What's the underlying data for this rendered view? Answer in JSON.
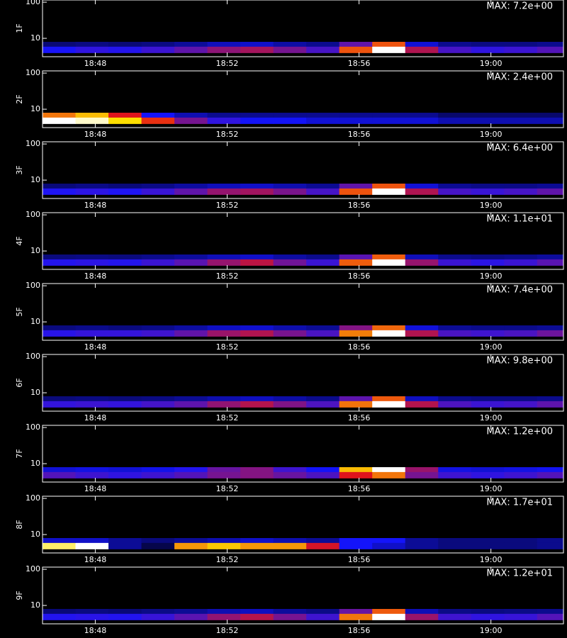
{
  "chart_data": [
    {
      "type": "heatmap",
      "ylabel": "1F",
      "max": {
        "value": 7.2,
        "label": "MAX: 7.2e+00"
      },
      "x": [
        46.9,
        47.9,
        48.9,
        49.9,
        50.9,
        51.9,
        52.9,
        53.9,
        54.9,
        55.9,
        56.9,
        57.9,
        58.9,
        59.9,
        60.9,
        61.9
      ],
      "y_bins": [
        4,
        6,
        8
      ],
      "z": [
        [
          2.2,
          2.4,
          2.3,
          2.5,
          2.8,
          3.2,
          3.4,
          3.0,
          2.6,
          4.5,
          7.2,
          3.5,
          2.6,
          2.4,
          2.5,
          2.7
        ],
        [
          1.0,
          1.1,
          1.0,
          1.1,
          1.3,
          1.6,
          1.7,
          1.4,
          1.2,
          2.8,
          4.5,
          1.8,
          1.2,
          1.1,
          1.1,
          1.2
        ]
      ],
      "xlim": [
        46.4,
        62.2
      ],
      "ylim": [
        3.1,
        115
      ],
      "log_y": true,
      "xticks": [
        {
          "value": 48,
          "label": "18:48"
        },
        {
          "value": 52,
          "label": "18:52"
        },
        {
          "value": 56,
          "label": "18:56"
        },
        {
          "value": 60,
          "label": "19:00"
        }
      ],
      "yticks": [
        10,
        100
      ]
    },
    {
      "type": "heatmap",
      "ylabel": "2F",
      "max": {
        "value": 2.4,
        "label": "MAX: 2.4e+00"
      },
      "x": [
        46.9,
        47.9,
        48.9,
        49.9,
        50.9,
        51.9,
        52.9,
        53.9,
        54.9,
        55.9,
        56.9,
        57.9,
        58.9,
        59.9,
        60.9,
        61.9
      ],
      "y_bins": [
        4,
        6,
        8
      ],
      "z": [
        [
          2.4,
          2.3,
          1.9,
          1.4,
          1.0,
          0.8,
          0.7,
          0.7,
          0.6,
          0.6,
          0.6,
          0.6,
          0.5,
          0.5,
          0.5,
          0.5
        ],
        [
          1.6,
          1.8,
          1.3,
          0.7,
          0.5,
          0.4,
          0.4,
          0.4,
          0.4,
          0.4,
          0.4,
          0.4,
          0.3,
          0.3,
          0.3,
          0.3
        ]
      ],
      "xlim": [
        46.4,
        62.2
      ],
      "ylim": [
        3.1,
        115
      ],
      "log_y": true,
      "xticks": [
        {
          "value": 48,
          "label": "18:48"
        },
        {
          "value": 52,
          "label": "18:52"
        },
        {
          "value": 56,
          "label": "18:56"
        },
        {
          "value": 60,
          "label": "19:00"
        }
      ],
      "yticks": [
        10,
        100
      ]
    },
    {
      "type": "heatmap",
      "ylabel": "3F",
      "max": {
        "value": 6.4,
        "label": "MAX: 6.4e+00"
      },
      "x": [
        46.9,
        47.9,
        48.9,
        49.9,
        50.9,
        51.9,
        52.9,
        53.9,
        54.9,
        55.9,
        56.9,
        57.9,
        58.9,
        59.9,
        60.9,
        61.9
      ],
      "y_bins": [
        4,
        6,
        8
      ],
      "z": [
        [
          2.0,
          2.1,
          2.0,
          2.2,
          2.5,
          2.9,
          3.0,
          2.7,
          2.3,
          4.0,
          6.4,
          3.1,
          2.3,
          2.2,
          2.3,
          2.5
        ],
        [
          0.9,
          1.0,
          0.9,
          1.0,
          1.2,
          1.4,
          1.5,
          1.3,
          1.1,
          2.5,
          4.0,
          1.6,
          1.1,
          1.0,
          1.0,
          1.1
        ]
      ],
      "xlim": [
        46.4,
        62.2
      ],
      "ylim": [
        3.1,
        115
      ],
      "log_y": true,
      "xticks": [
        {
          "value": 48,
          "label": "18:48"
        },
        {
          "value": 52,
          "label": "18:52"
        },
        {
          "value": 56,
          "label": "18:56"
        },
        {
          "value": 60,
          "label": "19:00"
        }
      ],
      "yticks": [
        10,
        100
      ]
    },
    {
      "type": "heatmap",
      "ylabel": "4F",
      "max": {
        "value": 11,
        "label": "MAX: 1.1e+01"
      },
      "x": [
        46.9,
        47.9,
        48.9,
        49.9,
        50.9,
        51.9,
        52.9,
        53.9,
        54.9,
        55.9,
        56.9,
        57.9,
        58.9,
        59.9,
        60.9,
        61.9
      ],
      "y_bins": [
        4,
        6,
        8
      ],
      "z": [
        [
          3.5,
          3.6,
          3.5,
          3.8,
          4.2,
          5.0,
          5.5,
          4.5,
          3.8,
          7.0,
          11,
          5.0,
          3.8,
          3.6,
          3.8,
          4.2
        ],
        [
          1.6,
          1.7,
          1.6,
          1.8,
          2.0,
          2.4,
          2.6,
          2.1,
          1.8,
          4.2,
          7.0,
          2.4,
          1.8,
          1.7,
          1.8,
          2.0
        ]
      ],
      "xlim": [
        46.4,
        62.2
      ],
      "ylim": [
        3.1,
        115
      ],
      "log_y": true,
      "xticks": [
        {
          "value": 48,
          "label": "18:48"
        },
        {
          "value": 52,
          "label": "18:52"
        },
        {
          "value": 56,
          "label": "18:56"
        },
        {
          "value": 60,
          "label": "19:00"
        }
      ],
      "yticks": [
        10,
        100
      ]
    },
    {
      "type": "heatmap",
      "ylabel": "5F",
      "max": {
        "value": 7.4,
        "label": "MAX: 7.4e+00"
      },
      "x": [
        46.9,
        47.9,
        48.9,
        49.9,
        50.9,
        51.9,
        52.9,
        53.9,
        54.9,
        55.9,
        56.9,
        57.9,
        58.9,
        59.9,
        60.9,
        61.9
      ],
      "y_bins": [
        4,
        6,
        8
      ],
      "z": [
        [
          2.4,
          2.5,
          2.5,
          2.6,
          2.9,
          3.4,
          3.6,
          3.1,
          2.7,
          5.0,
          7.4,
          3.6,
          2.7,
          2.6,
          2.7,
          3.0
        ],
        [
          1.1,
          1.2,
          1.1,
          1.2,
          1.4,
          1.7,
          1.8,
          1.5,
          1.3,
          3.2,
          4.8,
          1.9,
          1.3,
          1.2,
          1.2,
          1.3
        ]
      ],
      "xlim": [
        46.4,
        62.2
      ],
      "ylim": [
        3.1,
        115
      ],
      "log_y": true,
      "xticks": [
        {
          "value": 48,
          "label": "18:48"
        },
        {
          "value": 52,
          "label": "18:52"
        },
        {
          "value": 56,
          "label": "18:56"
        },
        {
          "value": 60,
          "label": "19:00"
        }
      ],
      "yticks": [
        10,
        100
      ]
    },
    {
      "type": "heatmap",
      "ylabel": "6F",
      "max": {
        "value": 9.8,
        "label": "MAX: 9.8e+00"
      },
      "x": [
        46.9,
        47.9,
        48.9,
        49.9,
        50.9,
        51.9,
        52.9,
        53.9,
        54.9,
        55.9,
        56.9,
        57.9,
        58.9,
        59.9,
        60.9,
        61.9
      ],
      "y_bins": [
        4,
        6,
        8
      ],
      "z": [
        [
          3.3,
          3.4,
          3.3,
          3.5,
          3.8,
          4.4,
          4.8,
          4.2,
          3.6,
          6.5,
          9.8,
          4.8,
          3.6,
          3.4,
          3.5,
          3.8
        ],
        [
          1.4,
          1.5,
          1.4,
          1.5,
          1.7,
          2.0,
          2.2,
          1.9,
          1.6,
          3.8,
          6.2,
          2.2,
          1.6,
          1.5,
          1.5,
          1.6
        ]
      ],
      "xlim": [
        46.4,
        62.2
      ],
      "ylim": [
        3.1,
        115
      ],
      "log_y": true,
      "xticks": [
        {
          "value": 48,
          "label": "18:48"
        },
        {
          "value": 52,
          "label": "18:52"
        },
        {
          "value": 56,
          "label": "18:56"
        },
        {
          "value": 60,
          "label": "19:00"
        }
      ],
      "yticks": [
        10,
        100
      ]
    },
    {
      "type": "heatmap",
      "ylabel": "7F",
      "max": {
        "value": 1.2,
        "label": "MAX: 1.2e+00"
      },
      "x": [
        46.9,
        47.9,
        48.9,
        49.9,
        50.9,
        51.9,
        52.9,
        53.9,
        54.9,
        55.9,
        56.9,
        57.9,
        58.9,
        59.9,
        60.9,
        61.9
      ],
      "y_bins": [
        4,
        6,
        8
      ],
      "z": [
        [
          0.45,
          0.42,
          0.4,
          0.42,
          0.45,
          0.5,
          0.52,
          0.48,
          0.44,
          0.65,
          0.8,
          0.5,
          0.42,
          0.4,
          0.42,
          0.45
        ],
        [
          0.3,
          0.32,
          0.3,
          0.33,
          0.38,
          0.48,
          0.52,
          0.42,
          0.35,
          0.9,
          1.2,
          0.55,
          0.32,
          0.3,
          0.32,
          0.34
        ]
      ],
      "xlim": [
        46.4,
        62.2
      ],
      "ylim": [
        3.1,
        115
      ],
      "log_y": true,
      "xticks": [
        {
          "value": 48,
          "label": "18:48"
        },
        {
          "value": 52,
          "label": "18:52"
        },
        {
          "value": 56,
          "label": "18:56"
        },
        {
          "value": 60,
          "label": "19:00"
        }
      ],
      "yticks": [
        10,
        100
      ]
    },
    {
      "type": "heatmap",
      "ylabel": "8F",
      "max": {
        "value": 17,
        "label": "MAX: 1.7e+01"
      },
      "x": [
        46.9,
        47.9,
        48.9,
        49.9,
        50.9,
        51.9,
        52.9,
        53.9,
        54.9,
        55.9,
        56.9,
        57.9,
        58.9,
        59.9,
        60.9,
        61.9
      ],
      "y_bins": [
        4,
        6,
        8
      ],
      "z": [
        [
          15,
          17,
          3.0,
          1.5,
          12,
          13,
          12,
          12,
          9.0,
          5.0,
          4.0,
          3.0,
          2.5,
          2.5,
          2.5,
          2.8
        ],
        [
          4.0,
          4.0,
          3.0,
          2.5,
          3.0,
          3.5,
          4.0,
          3.5,
          3.0,
          5.0,
          5.0,
          3.0,
          2.5,
          2.5,
          2.5,
          2.8
        ]
      ],
      "xlim": [
        46.4,
        62.2
      ],
      "ylim": [
        3.1,
        115
      ],
      "log_y": true,
      "xticks": [
        {
          "value": 48,
          "label": "18:48"
        },
        {
          "value": 52,
          "label": "18:52"
        },
        {
          "value": 56,
          "label": "18:56"
        },
        {
          "value": 60,
          "label": "19:00"
        }
      ],
      "yticks": [
        10,
        100
      ]
    },
    {
      "type": "heatmap",
      "ylabel": "9F",
      "max": {
        "value": 12,
        "label": "MAX: 1.2e+01"
      },
      "x": [
        46.9,
        47.9,
        48.9,
        49.9,
        50.9,
        51.9,
        52.9,
        53.9,
        54.9,
        55.9,
        56.9,
        57.9,
        58.9,
        59.9,
        60.9,
        61.9
      ],
      "y_bins": [
        4,
        6,
        8
      ],
      "z": [
        [
          3.8,
          3.9,
          3.8,
          4.1,
          4.6,
          5.4,
          5.9,
          5.0,
          4.2,
          8.0,
          12,
          5.5,
          4.2,
          4.0,
          4.1,
          4.5
        ],
        [
          1.7,
          1.8,
          1.7,
          1.9,
          2.1,
          2.5,
          2.7,
          2.2,
          1.9,
          4.8,
          7.6,
          2.6,
          1.9,
          1.8,
          1.9,
          2.0
        ]
      ],
      "xlim": [
        46.4,
        62.2
      ],
      "ylim": [
        3.1,
        115
      ],
      "log_y": true,
      "xticks": [
        {
          "value": 48,
          "label": "18:48"
        },
        {
          "value": 52,
          "label": "18:52"
        },
        {
          "value": 56,
          "label": "18:56"
        },
        {
          "value": 60,
          "label": "19:00"
        }
      ],
      "yticks": [
        10,
        100
      ]
    }
  ]
}
